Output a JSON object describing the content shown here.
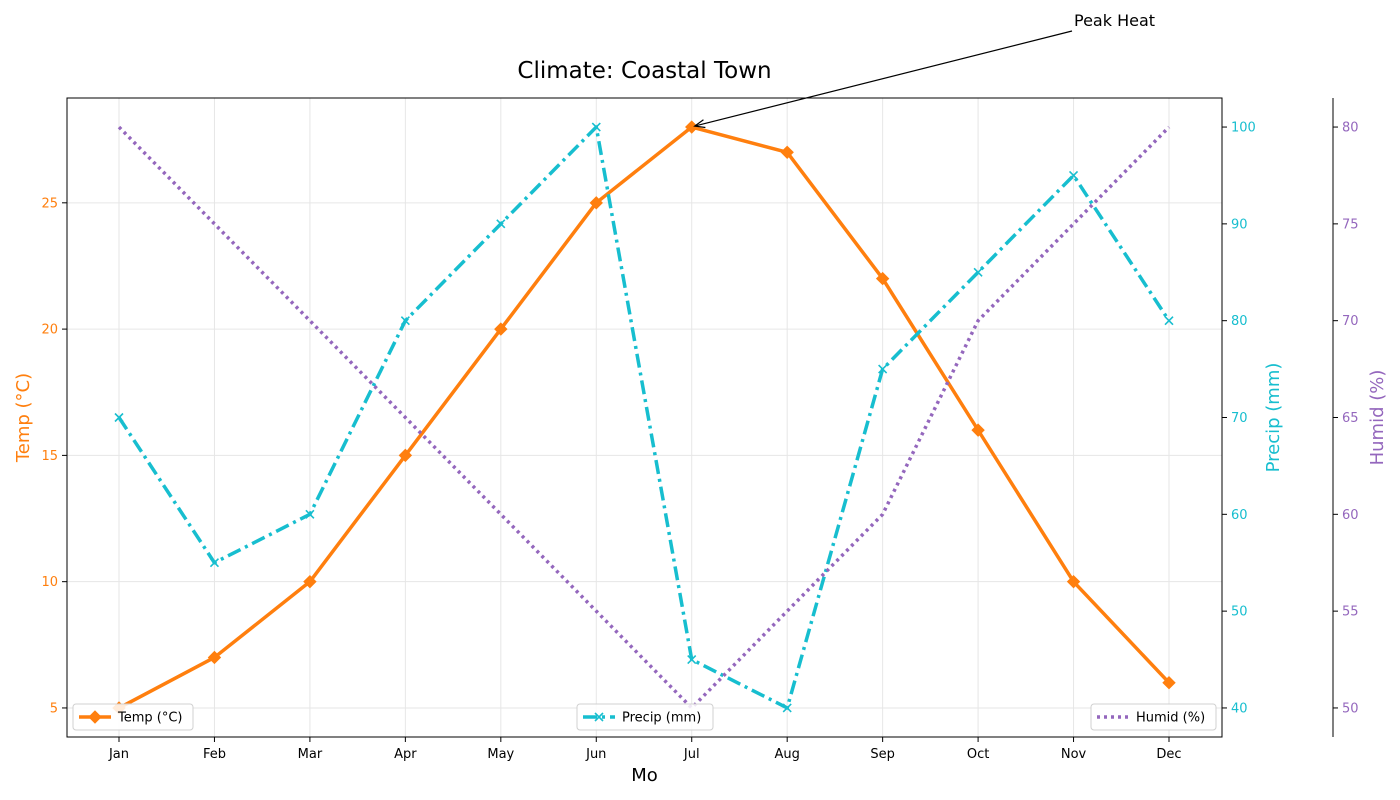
{
  "chart_data": {
    "type": "line",
    "title": "Climate: Coastal Town",
    "xlabel": "Mo",
    "categories": [
      "Jan",
      "Feb",
      "Mar",
      "Apr",
      "May",
      "Jun",
      "Jul",
      "Aug",
      "Sep",
      "Oct",
      "Nov",
      "Dec"
    ],
    "series": [
      {
        "name": "Temp (°C)",
        "axis": "left",
        "color": "#ff7f0e",
        "line_style": "solid",
        "marker": "diamond",
        "values": [
          5,
          7,
          10,
          15,
          20,
          25,
          28,
          27,
          22,
          16,
          10,
          6
        ]
      },
      {
        "name": "Precip (mm)",
        "axis": "right",
        "color": "#17becf",
        "line_style": "dash-dot",
        "marker": "x",
        "values": [
          70,
          55,
          60,
          80,
          90,
          100,
          45,
          40,
          75,
          85,
          95,
          80
        ]
      },
      {
        "name": "Humid (%)",
        "axis": "far-right",
        "color": "#9467bd",
        "line_style": "dotted",
        "marker": "none",
        "values": [
          80,
          75,
          70,
          65,
          60,
          55,
          50,
          55,
          60,
          70,
          75,
          80
        ]
      }
    ],
    "axes": {
      "left": {
        "label": "Temp (°C)",
        "color": "#ff7f0e",
        "ylim": [
          3.85,
          29.15
        ],
        "ticks": [
          5,
          10,
          15,
          20,
          25
        ]
      },
      "right": {
        "label": "Precip (mm)",
        "color": "#17becf",
        "ylim": [
          37,
          103
        ],
        "ticks": [
          40,
          50,
          60,
          70,
          80,
          90,
          100
        ]
      },
      "far_right": {
        "label": "Humid (%)",
        "color": "#9467bd",
        "ylim": [
          48.5,
          81.5
        ],
        "ticks": [
          50,
          55,
          60,
          65,
          70,
          75,
          80
        ]
      }
    },
    "grid": true,
    "legends": [
      {
        "series": "Temp (°C)",
        "placement": "lower left"
      },
      {
        "series": "Precip (mm)",
        "placement": "lower center"
      },
      {
        "series": "Humid (%)",
        "placement": "lower right"
      }
    ],
    "annotation": {
      "text": "Peak Heat",
      "category": "Jul",
      "value": 28,
      "series": "Temp (°C)"
    }
  }
}
